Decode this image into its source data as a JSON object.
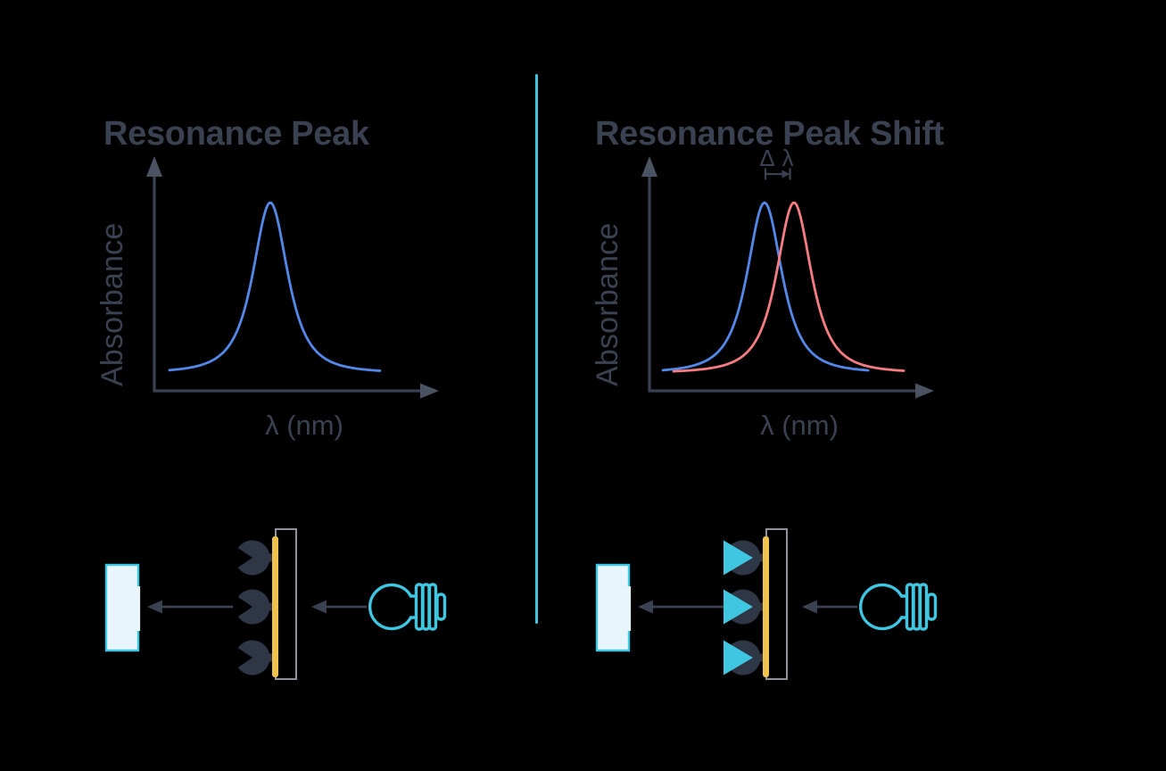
{
  "figure": {
    "background": "#000000",
    "divider_color": "#3fc5e0"
  },
  "palette": {
    "ink": "#3a4150",
    "arrowhead": "#4b5262",
    "receptor_navy": "#2f3747",
    "teal": "#3fc6e0",
    "detector_fill": "#e8f6fb",
    "gold": "#efc24f",
    "chip_gray": "#8f949c"
  },
  "left_panel": {
    "title": "Resonance Peak",
    "plot": {
      "ylabel": "Absorbance",
      "xlabel": "λ (nm)",
      "curves": [
        {
          "series": "resonance-peak",
          "color": "#5488e8"
        }
      ]
    },
    "diagram": {
      "analyte_bound": false,
      "components": [
        "detector-panel",
        "receptors",
        "gold-film",
        "sensor-chip",
        "light-bulb"
      ]
    }
  },
  "right_panel": {
    "title": "Resonance Peak Shift",
    "plot": {
      "ylabel": "Absorbance",
      "xlabel": "λ (nm)",
      "shift_label": "Δ λ",
      "curves": [
        {
          "series": "original-peak",
          "color": "#5488e8"
        },
        {
          "series": "shifted-peak",
          "color": "#f57c80"
        }
      ]
    },
    "diagram": {
      "analyte_bound": true,
      "components": [
        "detector-panel",
        "receptors-with-analytes",
        "gold-film",
        "sensor-chip",
        "light-bulb"
      ]
    }
  },
  "chart_data": [
    {
      "type": "line",
      "title": "Resonance Peak",
      "xlabel": "λ (nm)",
      "ylabel": "Absorbance",
      "axes_numeric_ticks": false,
      "series": [
        {
          "name": "resonance-peak",
          "color": "#5488e8",
          "peak_position_relative": 0.43,
          "peak_height_relative": 1.0
        }
      ]
    },
    {
      "type": "line",
      "title": "Resonance Peak Shift",
      "xlabel": "λ (nm)",
      "ylabel": "Absorbance",
      "axes_numeric_ticks": false,
      "annotation": "Δ λ",
      "series": [
        {
          "name": "original-peak",
          "color": "#5488e8",
          "peak_position_relative": 0.43,
          "peak_height_relative": 1.0
        },
        {
          "name": "shifted-peak",
          "color": "#f57c80",
          "peak_position_relative": 0.54,
          "peak_height_relative": 1.0
        }
      ]
    }
  ]
}
